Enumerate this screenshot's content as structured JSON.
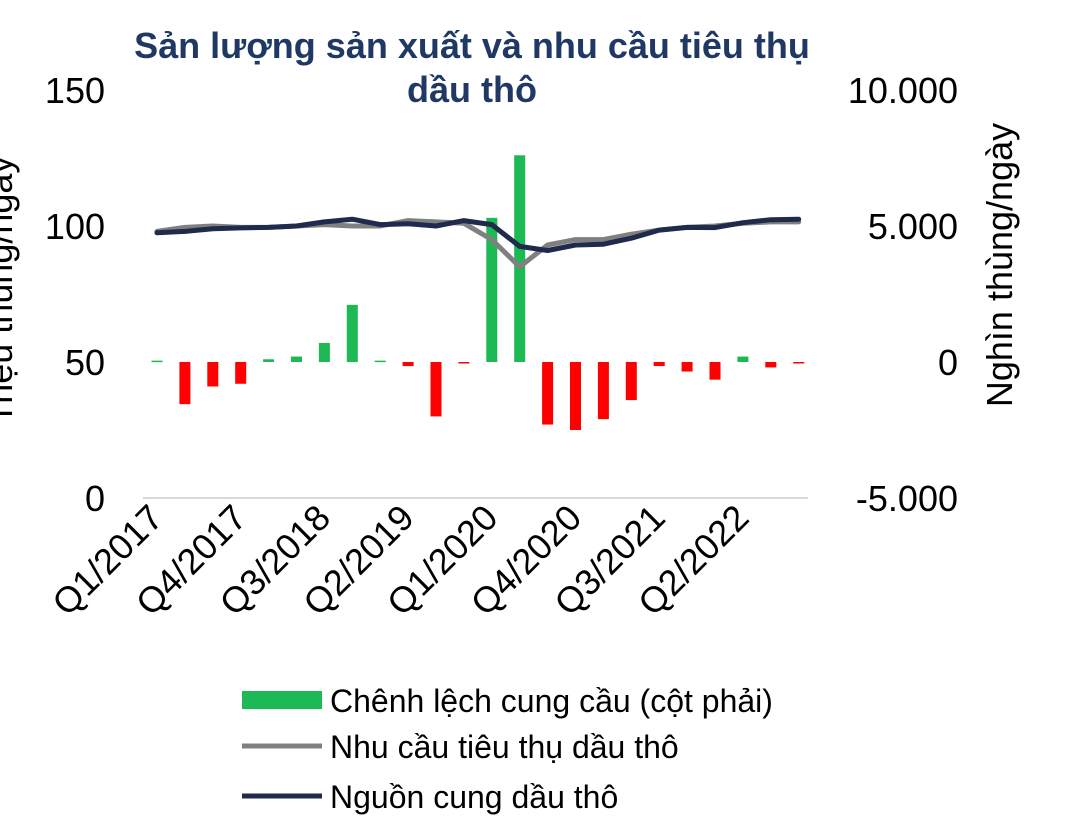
{
  "chart_data": {
    "type": "bar+line",
    "title": "Sản lượng sản xuất và nhu cầu tiêu thụ dầu thô",
    "ylabel_left": "Triệu thùng/ngày",
    "ylabel_right": "Nghìn thùng/ngày",
    "ylim_left": [
      0,
      150
    ],
    "yticks_left": [
      "0",
      "50",
      "100",
      "150"
    ],
    "ylim_right": [
      -5000,
      10000
    ],
    "yticks_right": [
      "-5.000",
      "0",
      "5.000",
      "10.000"
    ],
    "categories": [
      "Q1/2017",
      "Q2/2017",
      "Q3/2017",
      "Q4/2017",
      "Q1/2018",
      "Q2/2018",
      "Q3/2018",
      "Q4/2018",
      "Q1/2019",
      "Q2/2019",
      "Q3/2019",
      "Q4/2019",
      "Q1/2020",
      "Q2/2020",
      "Q3/2020",
      "Q4/2020",
      "Q1/2021",
      "Q2/2021",
      "Q3/2021",
      "Q4/2021",
      "Q1/2022",
      "Q2/2022",
      "Q3/2022",
      "Q4/2022"
    ],
    "xtick_labels": [
      "Q1/2017",
      "Q4/2017",
      "Q3/2018",
      "Q2/2019",
      "Q1/2020",
      "Q4/2020",
      "Q3/2021",
      "Q2/2022"
    ],
    "series": [
      {
        "name": "Chênh lệch cung cầu (cột phải)",
        "kind": "bar",
        "axis": "right",
        "color": "#1db954",
        "negative_color": "#ff0000",
        "values": [
          50,
          -1550,
          -900,
          -800,
          100,
          200,
          700,
          2100,
          50,
          -150,
          -2000,
          -50,
          5300,
          7600,
          -2300,
          -2500,
          -2100,
          -1400,
          -150,
          -350,
          -650,
          200,
          -200,
          -50
        ]
      },
      {
        "name": "Nhu cầu tiêu thụ dầu thô",
        "kind": "line",
        "axis": "left",
        "color": "#808080",
        "values": [
          98,
          99.5,
          100,
          99.5,
          99.5,
          100,
          100.5,
          100,
          100,
          102,
          101.5,
          101,
          95,
          85,
          93,
          95,
          95,
          97,
          98.5,
          99.5,
          100,
          101,
          101.5,
          101.5
        ]
      },
      {
        "name": "Nguồn cung dầu thô",
        "kind": "line",
        "axis": "left",
        "color": "#1f2a4c",
        "values": [
          97.5,
          98,
          99,
          99.3,
          99.5,
          100,
          101.5,
          102.5,
          100.5,
          100.8,
          100,
          102,
          100.5,
          92.5,
          91,
          93,
          93.3,
          95.5,
          98.5,
          99.5,
          99.4,
          101.2,
          102.3,
          102.5
        ]
      }
    ],
    "grid": false,
    "legend_position": "bottom"
  }
}
